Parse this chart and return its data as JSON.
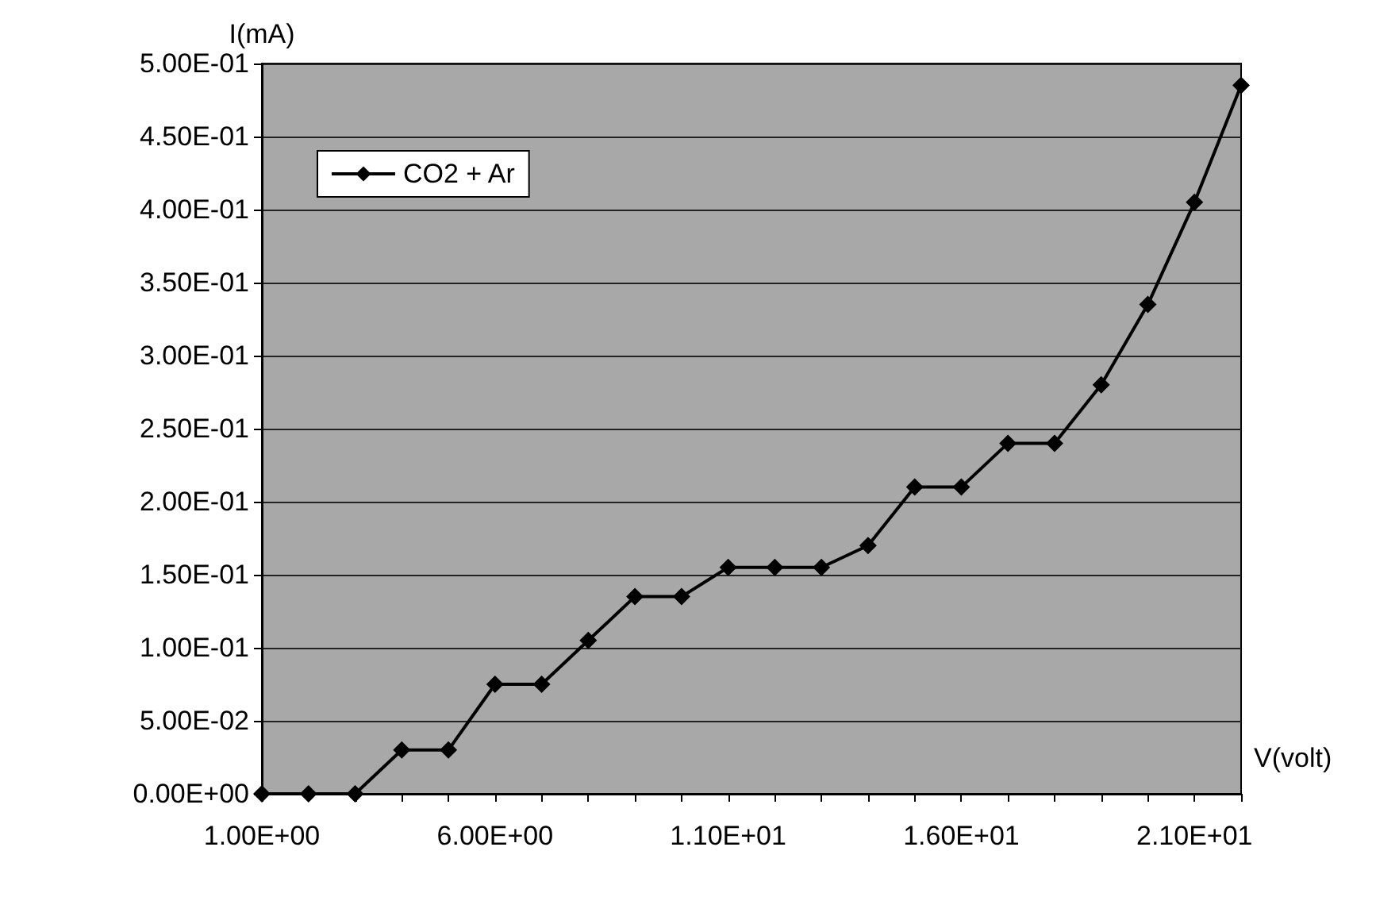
{
  "chart_data": {
    "type": "line",
    "xlabel": "V(volt)",
    "ylabel": "I(mA)",
    "categories": [
      "1.00E+00",
      null,
      null,
      null,
      null,
      "6.00E+00",
      null,
      null,
      null,
      null,
      "1.10E+01",
      null,
      null,
      null,
      null,
      "1.60E+01",
      null,
      null,
      null,
      null,
      "2.10E+01",
      null
    ],
    "series": [
      {
        "name": "CO2 + Ar",
        "color": "#000000",
        "values": [
          0,
          0,
          0,
          0.03,
          0.03,
          0.075,
          0.075,
          0.105,
          0.135,
          0.135,
          0.155,
          0.155,
          0.155,
          0.17,
          0.21,
          0.21,
          0.24,
          0.24,
          0.28,
          0.335,
          0.405,
          0.485
        ]
      }
    ],
    "ylim": [
      0,
      0.5
    ],
    "yticks": [
      {
        "value": 0,
        "label": "0.00E+00"
      },
      {
        "value": 0.05,
        "label": "5.00E-02"
      },
      {
        "value": 0.1,
        "label": "1.00E-01"
      },
      {
        "value": 0.15,
        "label": "1.50E-01"
      },
      {
        "value": 0.2,
        "label": "2.00E-01"
      },
      {
        "value": 0.25,
        "label": "2.50E-01"
      },
      {
        "value": 0.3,
        "label": "3.00E-01"
      },
      {
        "value": 0.35,
        "label": "3.50E-01"
      },
      {
        "value": 0.4,
        "label": "4.00E-01"
      },
      {
        "value": 0.45,
        "label": "4.50E-01"
      },
      {
        "value": 0.5,
        "label": "5.00E-01"
      }
    ],
    "grid": "y",
    "legend": "top left",
    "marker": "diamond",
    "line_style": "solid"
  }
}
